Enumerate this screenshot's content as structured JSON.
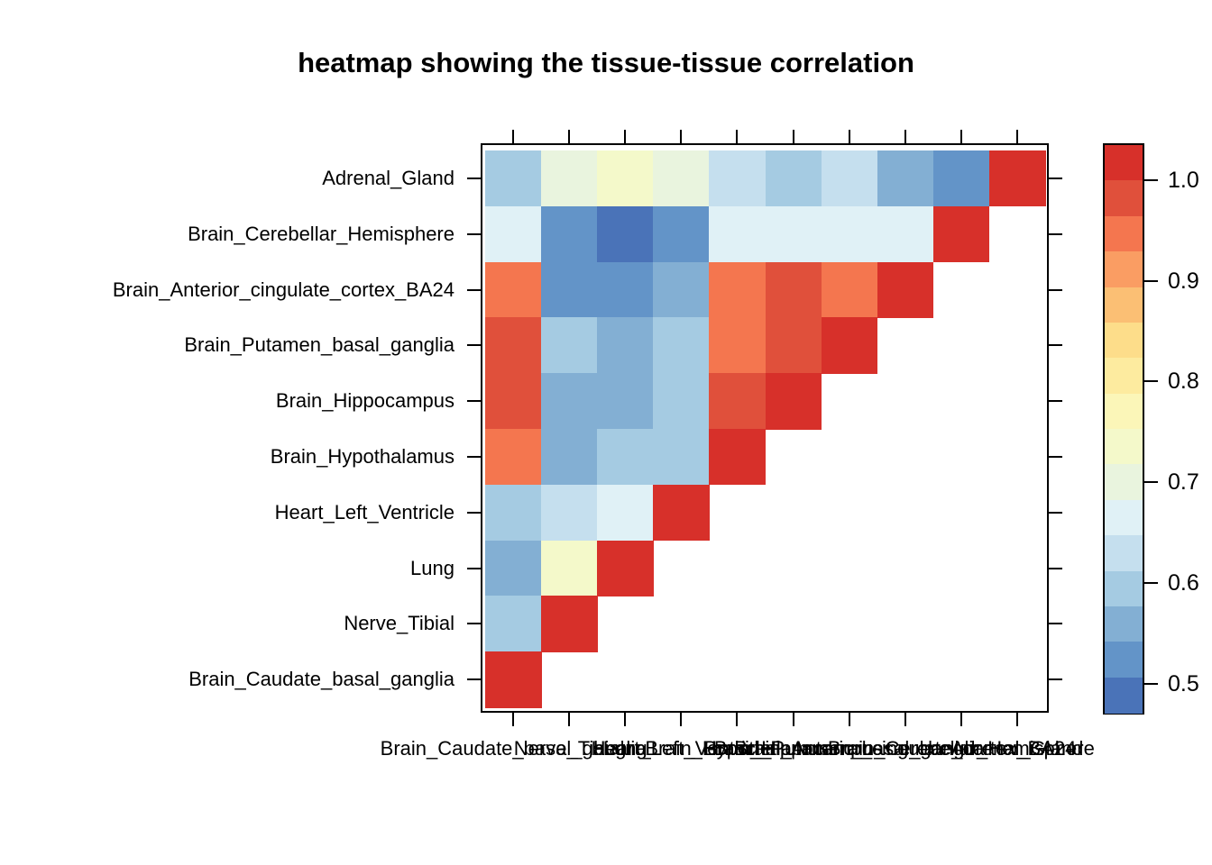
{
  "title": "heatmap showing the tissue-tissue correlation",
  "colors": {
    "background": "#FFFFFF",
    "text": "#000000",
    "axis_line": "#000000",
    "diagonal_red": "#D7302A"
  },
  "chart_data": {
    "type": "heatmap",
    "title": "heatmap showing the tissue-tissue correlation",
    "shape": "lower-triangle-with-diagonal (diagonal runs bottom-left to top-right, all diagonal cells = 1.0)",
    "row_labels": [
      "Adrenal_Gland",
      "Brain_Cerebellar_Hemisphere",
      "Brain_Anterior_cingulate_cortex_BA24",
      "Brain_Putamen_basal_ganglia",
      "Brain_Hippocampus",
      "Brain_Hypothalamus",
      "Heart_Left_Ventricle",
      "Lung",
      "Nerve_Tibial",
      "Brain_Caudate_basal_ganglia"
    ],
    "col_labels": [
      "Brain_Caudate_basal_ganglia",
      "Nerve_Tibial",
      "Lung",
      "Heart_Left_Ventricle",
      "Brain_Hypothalamus",
      "Brain_Hippocampus",
      "Brain_Putamen_basal_ganglia",
      "Brain_Anterior_cingulate_cortex_BA24",
      "Brain_Cerebellar_Hemisphere",
      "Adrenal_Gland"
    ],
    "matrix": [
      [
        0.59,
        0.7,
        0.74,
        0.7,
        0.63,
        0.59,
        0.63,
        0.56,
        0.52,
        1.0
      ],
      [
        0.66,
        0.52,
        0.49,
        0.52,
        0.66,
        0.66,
        0.66,
        0.66,
        1.0,
        null
      ],
      [
        0.95,
        0.52,
        0.52,
        0.56,
        0.95,
        0.98,
        0.95,
        1.0,
        null,
        null
      ],
      [
        0.98,
        0.59,
        0.56,
        0.59,
        0.95,
        0.98,
        1.0,
        null,
        null,
        null
      ],
      [
        0.98,
        0.56,
        0.56,
        0.59,
        0.98,
        1.0,
        null,
        null,
        null,
        null
      ],
      [
        0.95,
        0.56,
        0.59,
        0.59,
        1.0,
        null,
        null,
        null,
        null,
        null
      ],
      [
        0.59,
        0.63,
        0.66,
        1.0,
        null,
        null,
        null,
        null,
        null,
        null
      ],
      [
        0.56,
        0.74,
        1.0,
        null,
        null,
        null,
        null,
        null,
        null,
        null
      ],
      [
        0.59,
        1.0,
        null,
        null,
        null,
        null,
        null,
        null,
        null,
        null
      ],
      [
        1.0,
        null,
        null,
        null,
        null,
        null,
        null,
        null,
        null,
        null
      ]
    ],
    "cell_colors": [
      [
        "#A5CBE2",
        "#E9F4DE",
        "#F4F9CA",
        "#E9F4DE",
        "#C5DFEE",
        "#A5CBE2",
        "#C5DFEE",
        "#83AFD3",
        "#6394C8",
        "#D7302A"
      ],
      [
        "#E0F1F6",
        "#6394C8",
        "#4A73B8",
        "#6394C8",
        "#E0F1F6",
        "#E0F1F6",
        "#E0F1F6",
        "#E0F1F6",
        "#D7302A",
        null
      ],
      [
        "#F4764F",
        "#6394C8",
        "#6394C8",
        "#83AFD3",
        "#F4764F",
        "#E0503B",
        "#F4764F",
        "#D7302A",
        null,
        null
      ],
      [
        "#E0503B",
        "#A5CBE2",
        "#83AFD3",
        "#A5CBE2",
        "#F4764F",
        "#E0503B",
        "#D7302A",
        null,
        null,
        null
      ],
      [
        "#E0503B",
        "#83AFD3",
        "#83AFD3",
        "#A5CBE2",
        "#E0503B",
        "#D7302A",
        null,
        null,
        null,
        null
      ],
      [
        "#F4764F",
        "#83AFD3",
        "#A5CBE2",
        "#A5CBE2",
        "#D7302A",
        null,
        null,
        null,
        null,
        null
      ],
      [
        "#A5CBE2",
        "#C5DFEE",
        "#E0F1F6",
        "#D7302A",
        null,
        null,
        null,
        null,
        null,
        null
      ],
      [
        "#83AFD3",
        "#F4F9CA",
        "#D7302A",
        null,
        null,
        null,
        null,
        null,
        null,
        null
      ],
      [
        "#A5CBE2",
        "#D7302A",
        null,
        null,
        null,
        null,
        null,
        null,
        null,
        null
      ],
      [
        "#D7302A",
        null,
        null,
        null,
        null,
        null,
        null,
        null,
        null,
        null
      ]
    ],
    "colorbar": {
      "position": "right",
      "tick_labels": [
        "1.0",
        "0.9",
        "0.8",
        "0.7",
        "0.6",
        "0.5"
      ],
      "tick_values": [
        1.0,
        0.9,
        0.8,
        0.7,
        0.6,
        0.5
      ],
      "value_range": [
        0.47,
        1.035
      ],
      "band_colors_top_to_bottom": [
        "#D7302A",
        "#E0503B",
        "#F4764F",
        "#FA9D63",
        "#FBBF74",
        "#FDDD8A",
        "#FDEB9F",
        "#FBF6B8",
        "#F4F9CA",
        "#E9F4DE",
        "#E0F1F6",
        "#C5DFEE",
        "#A5CBE2",
        "#83AFD3",
        "#6394C8",
        "#4A73B8"
      ]
    },
    "layout_hints": {
      "grid": false,
      "legend_position": "right",
      "x_tick_count": 10,
      "y_tick_count": 10,
      "x_labels_overlapping": true
    }
  }
}
